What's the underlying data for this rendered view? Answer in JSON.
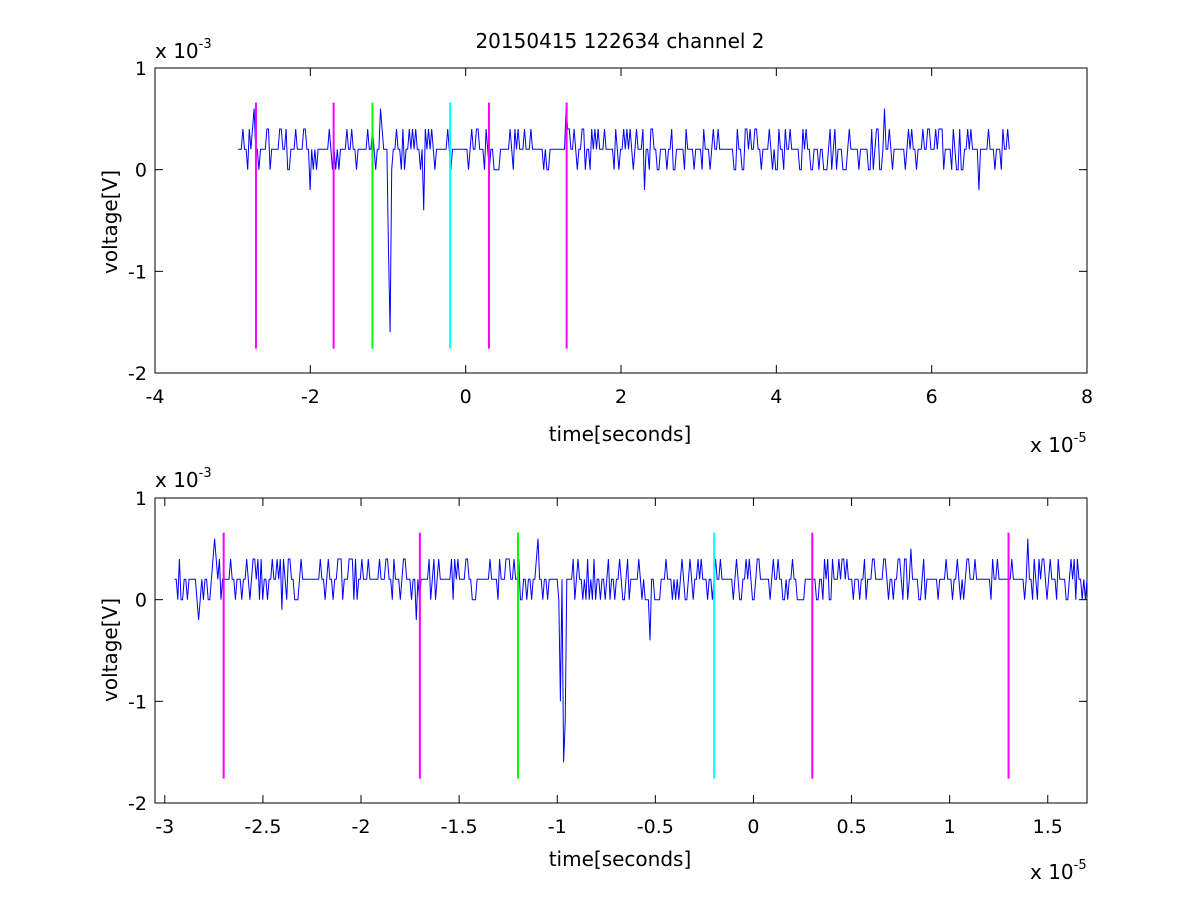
{
  "figure": {
    "title": "20150415 122634 channel 2"
  },
  "chart_data": [
    {
      "type": "line",
      "title": "20150415 122634 channel 2",
      "xlabel": "time[seconds]",
      "ylabel": "voltage[V]",
      "x_multiplier_label": "x 10",
      "x_multiplier_exp": "-5",
      "y_multiplier_label": "x 10",
      "y_multiplier_exp": "-3",
      "xlim": [
        -4,
        8
      ],
      "ylim": [
        -2,
        1
      ],
      "xticks": [
        -4,
        -2,
        0,
        2,
        4,
        6,
        8
      ],
      "xtick_labels": [
        "-4",
        "-2",
        "0",
        "2",
        "4",
        "6",
        "8"
      ],
      "yticks": [
        -2,
        -1,
        0,
        1
      ],
      "ytick_labels": [
        "-2",
        "-1",
        "0",
        "1"
      ],
      "grid": false,
      "series": [
        {
          "color": "#0000ff",
          "x_range": [
            -2.93,
            7.0
          ],
          "baseline": 0.2,
          "levels": [
            0,
            0.2,
            0.4
          ],
          "notable_points": [
            [
              -2.73,
              0.6
            ],
            [
              -2.0,
              -0.2
            ],
            [
              -1.1,
              0.6
            ],
            [
              -0.99,
              -0.8
            ],
            [
              -0.97,
              -1.6
            ],
            [
              -0.9,
              0.4
            ],
            [
              -0.55,
              -0.4
            ],
            [
              1.3,
              0.6
            ],
            [
              2.3,
              -0.2
            ],
            [
              5.4,
              0.6
            ],
            [
              6.6,
              -0.2
            ]
          ]
        }
      ],
      "markers": [
        {
          "x": -2.7,
          "color": "#ff00ff",
          "ytop": 0.66,
          "ybottom": -1.76
        },
        {
          "x": -1.7,
          "color": "#ff00ff",
          "ytop": 0.66,
          "ybottom": -1.76
        },
        {
          "x": -1.2,
          "color": "#00ff00",
          "ytop": 0.66,
          "ybottom": -1.76
        },
        {
          "x": -0.2,
          "color": "#00ffff",
          "ytop": 0.66,
          "ybottom": -1.76
        },
        {
          "x": 0.3,
          "color": "#ff00ff",
          "ytop": 0.66,
          "ybottom": -1.76
        },
        {
          "x": 1.3,
          "color": "#ff00ff",
          "ytop": 0.66,
          "ybottom": -1.76
        }
      ]
    },
    {
      "type": "line",
      "title": "",
      "xlabel": "time[seconds]",
      "ylabel": "voltage[V]",
      "x_multiplier_label": "x 10",
      "x_multiplier_exp": "-5",
      "y_multiplier_label": "x 10",
      "y_multiplier_exp": "-3",
      "xlim": [
        -3.05,
        1.7
      ],
      "ylim": [
        -2,
        1
      ],
      "xticks": [
        -3,
        -2.5,
        -2,
        -1.5,
        -1,
        -0.5,
        0,
        0.5,
        1,
        1.5
      ],
      "xtick_labels": [
        "-3",
        "-2.5",
        "-2",
        "-1.5",
        "-1",
        "-0.5",
        "0",
        "0.5",
        "1",
        "1.5"
      ],
      "yticks": [
        -2,
        -1,
        0,
        1
      ],
      "ytick_labels": [
        "-2",
        "-1",
        "0",
        "1"
      ],
      "grid": false,
      "series": [
        {
          "color": "#0000ff",
          "x_range": [
            -2.95,
            1.7
          ],
          "baseline": 0.2,
          "levels": [
            0,
            0.2,
            0.4
          ],
          "notable_points": [
            [
              -2.83,
              -0.2
            ],
            [
              -2.75,
              0.6
            ],
            [
              -2.4,
              -0.1
            ],
            [
              -1.72,
              -0.2
            ],
            [
              -1.1,
              0.6
            ],
            [
              -0.98,
              -1.0
            ],
            [
              -0.97,
              -1.6
            ],
            [
              -0.96,
              -1.2
            ],
            [
              -0.53,
              -0.4
            ],
            [
              0.8,
              0.5
            ],
            [
              1.4,
              0.6
            ]
          ]
        }
      ],
      "markers": [
        {
          "x": -2.7,
          "color": "#ff00ff",
          "ytop": 0.66,
          "ybottom": -1.76
        },
        {
          "x": -1.7,
          "color": "#ff00ff",
          "ytop": 0.66,
          "ybottom": -1.76
        },
        {
          "x": -1.2,
          "color": "#00ff00",
          "ytop": 0.66,
          "ybottom": -1.76
        },
        {
          "x": -0.2,
          "color": "#00ffff",
          "ytop": 0.66,
          "ybottom": -1.76
        },
        {
          "x": 0.3,
          "color": "#ff00ff",
          "ytop": 0.66,
          "ybottom": -1.76
        },
        {
          "x": 1.3,
          "color": "#ff00ff",
          "ytop": 0.66,
          "ybottom": -1.76
        }
      ]
    }
  ]
}
